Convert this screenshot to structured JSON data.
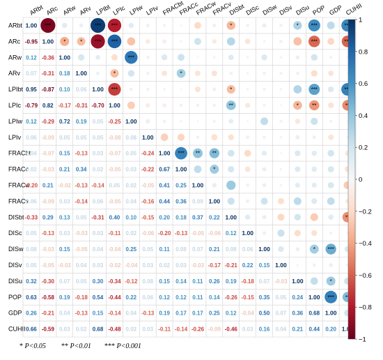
{
  "chart_data": {
    "type": "heatmap",
    "variables": [
      "ARbt",
      "ARc",
      "ARw",
      "ARv",
      "LPIbt",
      "LPIc",
      "LPIw",
      "LPIv",
      "FRACbt",
      "FRACc",
      "FRACw",
      "FRACv",
      "DISbt",
      "DISc",
      "DISw",
      "DISv",
      "DISu",
      "POP",
      "GDP",
      "CUHII"
    ],
    "lower_values": [
      [],
      [
        -0.95
      ],
      [
        0.12,
        -0.36
      ],
      [
        0.07,
        -0.31,
        0.18
      ],
      [
        0.95,
        -0.87,
        0.1,
        0.06
      ],
      [
        -0.79,
        0.82,
        -0.17,
        -0.31,
        -0.7
      ],
      [
        0.12,
        -0.29,
        0.72,
        0.19,
        0.05,
        -0.25
      ],
      [
        0.06,
        -0.09,
        0.05,
        0.05,
        0.05,
        -0.08,
        0.08
      ],
      [
        0.04,
        -0.07,
        0.15,
        -0.13,
        0.03,
        -0.07,
        0.05,
        -0.24
      ],
      [
        0.02,
        -0.03,
        0.21,
        0.34,
        0.02,
        -0.05,
        0.03,
        -0.22,
        0.67
      ],
      [
        -0.2,
        0.21,
        -0.02,
        -0.13,
        -0.14,
        0.05,
        0.02,
        -0.05,
        0.41,
        0.25
      ],
      [
        0.06,
        -0.09,
        0.03,
        -0.14,
        0.06,
        -0.05,
        0.04,
        -0.16,
        0.44,
        0.36,
        0.09
      ],
      [
        -0.33,
        0.29,
        0.13,
        0.05,
        -0.31,
        0.4,
        0.1,
        -0.15,
        0.2,
        0.18,
        0.37,
        0.22
      ],
      [
        0.05,
        -0.13,
        0.03,
        -0.03,
        0.03,
        -0.11,
        0.02,
        -0.06,
        -0.2,
        -0.13,
        -0.05,
        -0.06,
        0.12
      ],
      [
        0.08,
        -0.03,
        0.15,
        -0.05,
        0.04,
        -0.04,
        0.25,
        0.05,
        0.11,
        0.08,
        0.07,
        0.21,
        0.08,
        0.06
      ],
      [
        0.05,
        -0.05,
        -0.03,
        0.04,
        0.03,
        -0.02,
        -0.04,
        0.03,
        0.02,
        0.03,
        -0.03,
        -0.17,
        -0.21,
        0.22,
        0.15
      ],
      [
        0.32,
        -0.3,
        0.07,
        0.05,
        0.3,
        -0.34,
        -0.12,
        0.08,
        0.15,
        0.14,
        0.11,
        0.26,
        0.19,
        -0.18,
        0.07,
        -0.03
      ],
      [
        0.63,
        -0.58,
        0.19,
        -0.18,
        0.54,
        -0.44,
        0.22,
        0.06,
        0.12,
        0.12,
        0.11,
        0.14,
        -0.26,
        -0.15,
        0.35,
        0.05,
        0.24
      ],
      [
        0.26,
        -0.21,
        0.04,
        -0.13,
        0.15,
        -0.14,
        0.04,
        -0.13,
        0.19,
        0.17,
        0.17,
        0.25,
        0.12,
        -0.04,
        0.5,
        0.07,
        0.36,
        0.68
      ],
      [
        0.66,
        -0.59,
        0.03,
        0.02,
        0.68,
        -0.48,
        0.02,
        0.03,
        -0.11,
        -0.14,
        -0.26,
        -0.09,
        -0.46,
        0.03,
        0.16,
        0.04,
        0.21,
        0.44,
        0.2
      ]
    ],
    "upper_markers": [
      {
        "row": "ARbt",
        "col": "ARc",
        "r": -0.95,
        "sig": "***"
      },
      {
        "row": "ARbt",
        "col": "LPIbt",
        "r": 0.95,
        "sig": "***"
      },
      {
        "row": "ARbt",
        "col": "LPIc",
        "r": -0.79,
        "sig": "***"
      },
      {
        "row": "ARbt",
        "col": "DISbt",
        "r": -0.33,
        "sig": "*"
      },
      {
        "row": "ARbt",
        "col": "DISu",
        "r": 0.32,
        "sig": "*"
      },
      {
        "row": "ARbt",
        "col": "POP",
        "r": 0.63,
        "sig": "***"
      },
      {
        "row": "ARbt",
        "col": "CUHII",
        "r": 0.66,
        "sig": "***"
      },
      {
        "row": "ARc",
        "col": "ARw",
        "r": -0.36,
        "sig": "*"
      },
      {
        "row": "ARc",
        "col": "ARv",
        "r": -0.31,
        "sig": "*"
      },
      {
        "row": "ARc",
        "col": "LPIbt",
        "r": -0.87,
        "sig": "***"
      },
      {
        "row": "ARc",
        "col": "LPIc",
        "r": 0.82,
        "sig": "***"
      },
      {
        "row": "ARc",
        "col": "POP",
        "r": -0.58,
        "sig": "***"
      },
      {
        "row": "ARc",
        "col": "CUHII",
        "r": -0.59,
        "sig": "***"
      },
      {
        "row": "ARw",
        "col": "LPIw",
        "r": 0.72,
        "sig": "***"
      },
      {
        "row": "ARv",
        "col": "LPIc",
        "r": -0.31,
        "sig": "*"
      },
      {
        "row": "ARv",
        "col": "FRACc",
        "r": 0.34,
        "sig": "*"
      },
      {
        "row": "LPIbt",
        "col": "LPIc",
        "r": -0.7,
        "sig": "***"
      },
      {
        "row": "LPIbt",
        "col": "DISbt",
        "r": -0.31,
        "sig": "*"
      },
      {
        "row": "LPIbt",
        "col": "POP",
        "r": 0.54,
        "sig": "***"
      },
      {
        "row": "LPIbt",
        "col": "CUHII",
        "r": 0.68,
        "sig": "***"
      },
      {
        "row": "LPIc",
        "col": "DISbt",
        "r": 0.4,
        "sig": "**"
      },
      {
        "row": "LPIc",
        "col": "DISu",
        "r": -0.34,
        "sig": "*"
      },
      {
        "row": "LPIc",
        "col": "POP",
        "r": -0.44,
        "sig": "**"
      },
      {
        "row": "LPIc",
        "col": "CUHII",
        "r": -0.48,
        "sig": "**"
      },
      {
        "row": "FRACbt",
        "col": "FRACc",
        "r": 0.67,
        "sig": "***"
      },
      {
        "row": "FRACbt",
        "col": "FRACw",
        "r": 0.41,
        "sig": "**"
      },
      {
        "row": "FRACbt",
        "col": "FRACv",
        "r": 0.44,
        "sig": "**"
      },
      {
        "row": "FRACc",
        "col": "FRACv",
        "r": 0.36,
        "sig": "*"
      },
      {
        "row": "DISbt",
        "col": "CUHII",
        "r": -0.46,
        "sig": "**"
      },
      {
        "row": "DISw",
        "col": "POP",
        "r": 0.35,
        "sig": "*"
      },
      {
        "row": "DISw",
        "col": "GDP",
        "r": 0.5,
        "sig": "***"
      },
      {
        "row": "DISu",
        "col": "GDP",
        "r": 0.36,
        "sig": "*"
      },
      {
        "row": "POP",
        "col": "GDP",
        "r": 0.68,
        "sig": "***"
      },
      {
        "row": "POP",
        "col": "CUHII",
        "r": 0.44,
        "sig": "**"
      }
    ],
    "colorbar": {
      "ticks": [
        "1",
        "0.8",
        "0.6",
        "0.4",
        "0.2",
        "0",
        "−0.2",
        "−0.4",
        "−0.6",
        "−0.8",
        "−1"
      ],
      "range": [
        -1,
        1
      ],
      "colors": {
        "negative": "#67001f",
        "neutral": "#f7f7f7",
        "positive": "#053061"
      }
    },
    "diagonal": "1.00",
    "legend_items": [
      {
        "stars": "*",
        "text": "P<0.05"
      },
      {
        "stars": "**",
        "text": "P<0.01"
      },
      {
        "stars": "***",
        "text": "P<0.001"
      }
    ]
  }
}
